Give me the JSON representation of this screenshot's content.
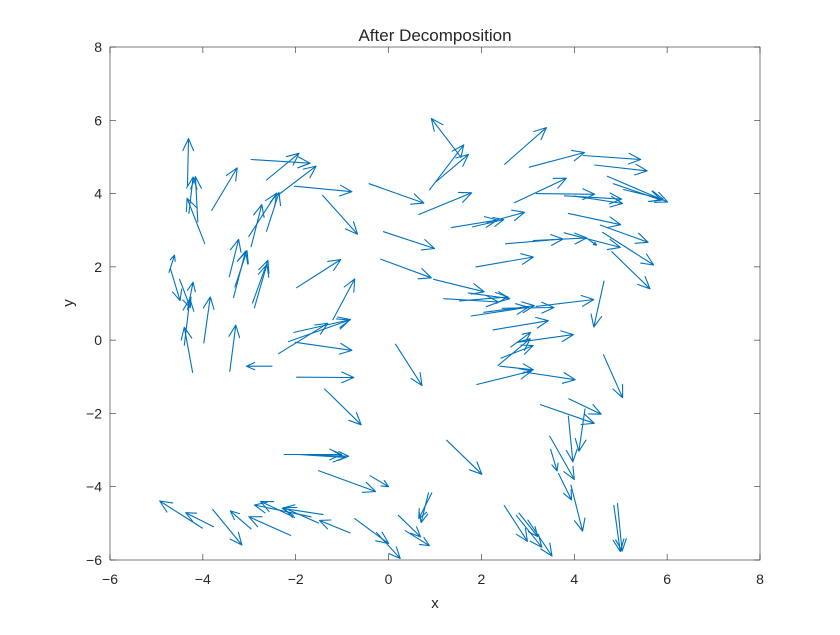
{
  "chart_data": {
    "type": "quiver",
    "title": "After Decomposition",
    "xlabel": "x",
    "ylabel": "y",
    "xlim": [
      -6,
      8
    ],
    "ylim": [
      -6,
      8
    ],
    "xticks": [
      -6,
      -4,
      -2,
      0,
      2,
      4,
      6,
      8
    ],
    "yticks": [
      -6,
      -4,
      -2,
      0,
      2,
      4,
      6,
      8
    ],
    "xtick_labels": [
      "−6",
      "−4",
      "−2",
      "0",
      "2",
      "4",
      "6",
      "8"
    ],
    "ytick_labels": [
      "−6",
      "−4",
      "−2",
      "0",
      "2",
      "4",
      "6",
      "8"
    ],
    "grid": false,
    "box": true,
    "arrow_color": "#0072bd",
    "arrows": [
      {
        "x": -4.33,
        "y": 4.22,
        "x2": -4.31,
        "y2": 5.5
      },
      {
        "x": -4.3,
        "y": 3.46,
        "x2": -4.21,
        "y2": 4.45
      },
      {
        "x": -3.96,
        "y": 2.64,
        "x2": -4.34,
        "y2": 3.87
      },
      {
        "x": -4.11,
        "y": 3.23,
        "x2": -4.16,
        "y2": 4.46
      },
      {
        "x": -3.81,
        "y": 3.54,
        "x2": -3.26,
        "y2": 4.7
      },
      {
        "x": -2.96,
        "y": 4.93,
        "x2": -1.69,
        "y2": 4.83
      },
      {
        "x": -2.63,
        "y": 4.37,
        "x2": -1.93,
        "y2": 5.1
      },
      {
        "x": -2.38,
        "y": 3.96,
        "x2": -1.56,
        "y2": 4.75
      },
      {
        "x": -2.03,
        "y": 4.2,
        "x2": -0.79,
        "y2": 4.05
      },
      {
        "x": -2.63,
        "y": 2.97,
        "x2": -2.36,
        "y2": 4.03
      },
      {
        "x": -2.96,
        "y": 2.55,
        "x2": -2.73,
        "y2": 3.7
      },
      {
        "x": -3.01,
        "y": 2.83,
        "x2": -2.41,
        "y2": 4.01
      },
      {
        "x": -3.31,
        "y": 1.45,
        "x2": -3.05,
        "y2": 2.44
      },
      {
        "x": -3.34,
        "y": 1.16,
        "x2": -3.08,
        "y2": 2.43
      },
      {
        "x": -3.43,
        "y": 1.73,
        "x2": -3.23,
        "y2": 2.75
      },
      {
        "x": -2.93,
        "y": 1.01,
        "x2": -2.6,
        "y2": 2.18
      },
      {
        "x": -2.89,
        "y": 0.88,
        "x2": -2.62,
        "y2": 2.07
      },
      {
        "x": -4.7,
        "y": 1.95,
        "x2": -4.49,
        "y2": 1.08
      },
      {
        "x": -4.73,
        "y": 1.85,
        "x2": -4.61,
        "y2": 2.32
      },
      {
        "x": -4.5,
        "y": 1.66,
        "x2": -4.27,
        "y2": 0.89
      },
      {
        "x": -4.33,
        "y": 0.83,
        "x2": -4.21,
        "y2": 1.58
      },
      {
        "x": -4.4,
        "y": -0.14,
        "x2": -4.28,
        "y2": 1.13
      },
      {
        "x": -4.22,
        "y": -0.88,
        "x2": -4.4,
        "y2": 0.35
      },
      {
        "x": -3.98,
        "y": -0.08,
        "x2": -3.84,
        "y2": 1.18
      },
      {
        "x": -3.42,
        "y": -0.85,
        "x2": -3.29,
        "y2": 0.41
      },
      {
        "x": -1.98,
        "y": 1.43,
        "x2": -1.03,
        "y2": 2.2
      },
      {
        "x": -2.04,
        "y": 0.21,
        "x2": -0.82,
        "y2": 0.56
      },
      {
        "x": -2.37,
        "y": -0.37,
        "x2": -1.31,
        "y2": 0.46
      },
      {
        "x": -2.16,
        "y": -0.04,
        "x2": -0.84,
        "y2": 0.55
      },
      {
        "x": -2.01,
        "y": -0.06,
        "x2": -0.79,
        "y2": -0.28
      },
      {
        "x": -1.2,
        "y": 0.56,
        "x2": -0.73,
        "y2": 1.67
      },
      {
        "x": -2.51,
        "y": -0.71,
        "x2": -3.06
      },
      {
        "x": -1.98,
        "y": -1.01,
        "x2": -0.75,
        "y2": -1.02
      },
      {
        "x": -1.38,
        "y": -1.33,
        "x2": -0.59,
        "y2": -2.31
      },
      {
        "x": -1.41,
        "y": -4.76,
        "x2": -2.29,
        "y2": -4.59
      },
      {
        "x": -2.02,
        "y": -4.84,
        "x2": -2.76,
        "y2": -4.4
      },
      {
        "x": -1.67,
        "y": -4.82,
        "x2": -2.89,
        "y2": -4.5
      },
      {
        "x": -1.51,
        "y": -4.99,
        "x2": -2.26,
        "y2": -4.57
      },
      {
        "x": -2.11,
        "y": -5.33,
        "x2": -3.01,
        "y2": -4.82
      },
      {
        "x": -0.83,
        "y": -5.26,
        "x2": -1.49,
        "y2": -4.92
      },
      {
        "x": -2.96,
        "y": -5.15,
        "x2": -3.41,
        "y2": -4.66
      },
      {
        "x": -3.77,
        "y": -5.09,
        "x2": -4.37,
        "y2": -4.71
      },
      {
        "x": -4.01,
        "y": -5.13,
        "x2": -4.93,
        "y2": -4.39
      },
      {
        "x": -3.79,
        "y": -4.62,
        "x2": -3.16,
        "y2": -5.59
      },
      {
        "x": -0.73,
        "y": -4.87,
        "x2": 0.0,
        "y2": -5.55
      },
      {
        "x": -0.26,
        "y": -5.25,
        "x2": 0.25,
        "y2": -5.96
      },
      {
        "x": 0.21,
        "y": -4.78,
        "x2": 0.69,
        "y2": -5.37
      },
      {
        "x": 0.36,
        "y": -5.2,
        "x2": 0.88,
        "y2": -5.61
      },
      {
        "x": 0.93,
        "y": -4.17,
        "x2": 0.65,
        "y2": -4.87
      },
      {
        "x": 0.86,
        "y": -4.17,
        "x2": 0.7,
        "y2": -4.98
      },
      {
        "x": -1.95,
        "y": -3.12,
        "x2": -0.93,
        "y2": -3.2
      },
      {
        "x": -2.25,
        "y": -3.12,
        "x2": -1.01,
        "y2": -3.12
      },
      {
        "x": -1.53,
        "y": -3.14,
        "x2": -0.86,
        "y2": -3.17
      },
      {
        "x": -1.51,
        "y": -3.56,
        "x2": -0.28,
        "y2": -4.13
      },
      {
        "x": -0.4,
        "y": -3.7,
        "x2": 0.0,
        "y2": -4.0
      },
      {
        "x": 0.15,
        "y": -0.11,
        "x2": 0.72,
        "y2": -1.24
      },
      {
        "x": 1.25,
        "y": -2.73,
        "x2": 2.01,
        "y2": -3.66
      },
      {
        "x": 2.49,
        "y": -4.51,
        "x2": 2.99,
        "y2": -5.49
      },
      {
        "x": 2.75,
        "y": -4.78,
        "x2": 3.3,
        "y2": -5.65
      },
      {
        "x": 3.0,
        "y": -4.91,
        "x2": 3.52,
        "y2": -5.89
      },
      {
        "x": 2.81,
        "y": -4.72,
        "x2": 3.21,
        "y2": -5.36
      },
      {
        "x": 3.66,
        "y": -3.64,
        "x2": 3.94,
        "y2": -4.36
      },
      {
        "x": 3.47,
        "y": -2.62,
        "x2": 4.0,
        "y2": -3.8
      },
      {
        "x": 3.49,
        "y": -2.98,
        "x2": 3.63,
        "y2": -3.57
      },
      {
        "x": 3.93,
        "y": -3.96,
        "x2": 4.18,
        "y2": -5.21
      },
      {
        "x": 3.87,
        "y": -2.07,
        "x2": 3.97,
        "y2": -3.32
      },
      {
        "x": 4.23,
        "y": -1.88,
        "x2": 4.1,
        "y2": -3.03
      },
      {
        "x": 4.85,
        "y": -4.51,
        "x2": 4.99,
        "y2": -5.77
      },
      {
        "x": 4.93,
        "y": -4.46,
        "x2": 5.03,
        "y2": -5.76
      },
      {
        "x": 4.63,
        "y": -0.4,
        "x2": 5.04,
        "y2": -1.57
      },
      {
        "x": 3.27,
        "y": -1.76,
        "x2": 4.43,
        "y2": -2.27
      },
      {
        "x": 3.88,
        "y": -1.6,
        "x2": 4.58,
        "y2": -2.02
      },
      {
        "x": 2.91,
        "y": -0.87,
        "x2": 4.02,
        "y2": -1.08
      },
      {
        "x": 2.4,
        "y": -0.71,
        "x2": 3.12,
        "y2": -0.81
      },
      {
        "x": 1.9,
        "y": -1.21,
        "x2": 3.08,
        "y2": -0.84
      },
      {
        "x": 2.36,
        "y": -0.69,
        "x2": 3.05,
        "y2": 0.04
      },
      {
        "x": 2.42,
        "y": -0.49,
        "x2": 3.11,
        "y2": -0.15
      },
      {
        "x": 2.78,
        "y": -0.06,
        "x2": 3.98,
        "y2": 0.15
      },
      {
        "x": 2.63,
        "y": -0.19,
        "x2": 3.06,
        "y2": 0.21
      },
      {
        "x": 2.25,
        "y": 0.28,
        "x2": 3.44,
        "y2": 0.53
      },
      {
        "x": 1.78,
        "y": 0.66,
        "x2": 3.01,
        "y2": 0.9
      },
      {
        "x": 2.05,
        "y": 0.76,
        "x2": 3.14,
        "y2": 0.94
      },
      {
        "x": 2.45,
        "y": 0.87,
        "x2": 3.56,
        "y2": 0.89
      },
      {
        "x": 1.53,
        "y": 1.07,
        "x2": 2.57,
        "y2": 1.18
      },
      {
        "x": 1.72,
        "y": 1.29,
        "x2": 2.61,
        "y2": 1.13
      },
      {
        "x": 1.19,
        "y": 1.13,
        "x2": 2.37,
        "y2": 1.04
      },
      {
        "x": 0.97,
        "y": 1.66,
        "x2": 2.06,
        "y2": 1.32
      },
      {
        "x": 3.18,
        "y": 0.92,
        "x2": 4.42,
        "y2": 1.11
      },
      {
        "x": 4.64,
        "y": 1.61,
        "x2": 4.42,
        "y2": 0.36
      },
      {
        "x": 1.88,
        "y": 2.0,
        "x2": 3.12,
        "y2": 2.27
      },
      {
        "x": -0.17,
        "y": 2.21,
        "x2": 0.92,
        "y2": 1.7
      },
      {
        "x": -0.11,
        "y": 2.96,
        "x2": 0.99,
        "y2": 2.5
      },
      {
        "x": 2.52,
        "y": 2.63,
        "x2": 3.76,
        "y2": 2.76
      },
      {
        "x": 3.12,
        "y": 2.72,
        "x2": 4.27,
        "y2": 2.79
      },
      {
        "x": 3.78,
        "y": 2.93,
        "x2": 4.99,
        "y2": 2.53
      },
      {
        "x": 4.31,
        "y": 2.74,
        "x2": 4.48,
        "y2": 2.59
      },
      {
        "x": 4.61,
        "y": 2.94,
        "x2": 5.71,
        "y2": 2.05
      },
      {
        "x": 4.56,
        "y": 3.14,
        "x2": 5.59,
        "y2": 2.67
      },
      {
        "x": 3.87,
        "y": 3.46,
        "x2": 5.0,
        "y2": 3.15
      },
      {
        "x": 4.81,
        "y": 2.41,
        "x2": 5.63,
        "y2": 1.4
      },
      {
        "x": 1.35,
        "y": 3.07,
        "x2": 2.34,
        "y2": 3.28
      },
      {
        "x": 1.81,
        "y": 3.09,
        "x2": 2.48,
        "y2": 3.29
      },
      {
        "x": 2.12,
        "y": 3.21,
        "x2": 2.93,
        "y2": 3.49
      },
      {
        "x": 0.65,
        "y": 3.43,
        "x2": 1.79,
        "y2": 4.02
      },
      {
        "x": -0.42,
        "y": 4.27,
        "x2": 0.76,
        "y2": 3.74
      },
      {
        "x": -1.42,
        "y": 3.95,
        "x2": -0.67,
        "y2": 2.89
      },
      {
        "x": 2.71,
        "y": 3.75,
        "x2": 3.83,
        "y2": 4.42
      },
      {
        "x": 3.18,
        "y": 4.0,
        "x2": 4.44,
        "y2": 3.98
      },
      {
        "x": 3.79,
        "y": 3.94,
        "x2": 5.02,
        "y2": 3.85
      },
      {
        "x": 4.0,
        "y": 3.93,
        "x2": 5.04,
        "y2": 3.73
      },
      {
        "x": 2.5,
        "y": 4.8,
        "x2": 3.4,
        "y2": 5.8
      },
      {
        "x": 3.03,
        "y": 4.72,
        "x2": 4.22,
        "y2": 5.12
      },
      {
        "x": 4.19,
        "y": 5.04,
        "x2": 5.43,
        "y2": 4.93
      },
      {
        "x": 4.44,
        "y": 4.78,
        "x2": 5.57,
        "y2": 4.62
      },
      {
        "x": 4.71,
        "y": 4.47,
        "x2": 6.01,
        "y2": 3.77
      },
      {
        "x": 4.84,
        "y": 4.27,
        "x2": 5.88,
        "y2": 3.82
      },
      {
        "x": 5.06,
        "y": 4.11,
        "x2": 5.91,
        "y2": 3.85
      },
      {
        "x": 0.88,
        "y": 4.1,
        "x2": 1.62,
        "y2": 5.33
      },
      {
        "x": 1.03,
        "y": 4.33,
        "x2": 1.72,
        "y2": 5.07
      },
      {
        "x": 1.54,
        "y": 5.02,
        "x2": 0.92,
        "y2": 6.05
      }
    ]
  }
}
